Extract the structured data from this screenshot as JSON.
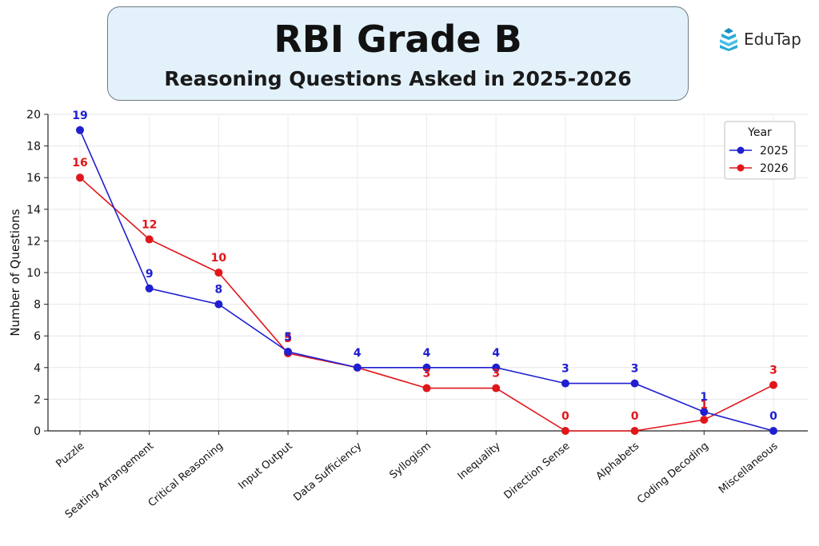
{
  "header": {
    "title": "RBI Grade B",
    "subtitle": "Reasoning Questions Asked in 2025-2026"
  },
  "brand": {
    "name": "EduTap",
    "icon": "book-stack-icon",
    "color": "#27a9d6"
  },
  "chart_data": {
    "type": "line",
    "title": "RBI Grade B",
    "subtitle": "Reasoning Questions Asked in 2025-2026",
    "xlabel": "",
    "ylabel": "Number of Questions",
    "ylim": [
      0,
      20
    ],
    "yticks": [
      0,
      2,
      4,
      6,
      8,
      10,
      12,
      14,
      16,
      18,
      20
    ],
    "grid": true,
    "categories": [
      "Puzzle",
      "Seating Arrangement",
      "Critical Reasoning",
      "Input Output",
      "Data Sufficiency",
      "Syllogism",
      "Inequality",
      "Direction Sense",
      "Alphabets",
      "Coding Decoding",
      "Miscellaneous"
    ],
    "legend": {
      "title": "Year",
      "position": "top-right"
    },
    "series": [
      {
        "name": "2025",
        "color": "#1f1fd1",
        "values": [
          19,
          9,
          8,
          5,
          4,
          4,
          4,
          3,
          3,
          1.2,
          0
        ],
        "labels": [
          "19",
          "9",
          "8",
          "5",
          "4",
          "4",
          "4",
          "3",
          "3",
          "1",
          "0"
        ]
      },
      {
        "name": "2026",
        "color": "#e0161b",
        "values": [
          16,
          12.1,
          10,
          4.9,
          4,
          2.7,
          2.7,
          0,
          0,
          0.7,
          2.9
        ],
        "labels": [
          "16",
          "12",
          "10",
          "5",
          "4",
          "3",
          "3",
          "0",
          "0",
          "1",
          "3"
        ]
      }
    ]
  }
}
